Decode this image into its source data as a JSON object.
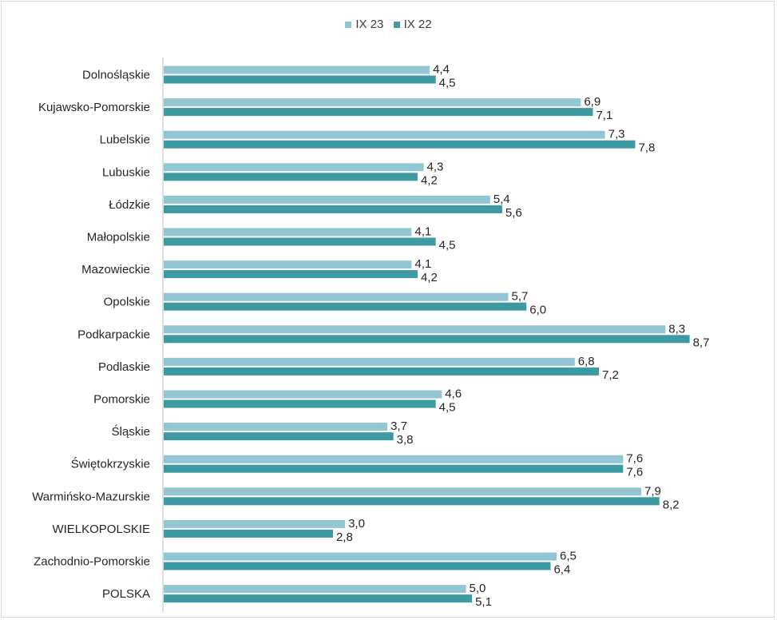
{
  "chart_data": {
    "type": "bar",
    "orientation": "horizontal",
    "legend_position": "top",
    "grid": false,
    "xlim": [
      0,
      9.5
    ],
    "categories": [
      "Dolnośląskie",
      "Kujawsko-Pomorskie",
      "Lubelskie",
      "Lubuskie",
      "Łódzkie",
      "Małopolskie",
      "Mazowieckie",
      "Opolskie",
      "Podkarpackie",
      "Podlaskie",
      "Pomorskie",
      "Śląskie",
      "Świętokrzyskie",
      "Warmińsko-Mazurskie",
      "WIELKOPOLSKIE",
      "Zachodnio-Pomorskie",
      "POLSKA"
    ],
    "series": [
      {
        "name": "IX 23",
        "color": "#93c6d3",
        "values": [
          4.4,
          6.9,
          7.3,
          4.3,
          5.4,
          4.1,
          4.1,
          5.7,
          8.3,
          6.8,
          4.6,
          3.7,
          7.6,
          7.9,
          3.0,
          6.5,
          5.0
        ],
        "labels": [
          "4,4",
          "6,9",
          "7,3",
          "4,3",
          "5,4",
          "4,1",
          "4,1",
          "5,7",
          "8,3",
          "6,8",
          "4,6",
          "3,7",
          "7,6",
          "7,9",
          "3,0",
          "6,5",
          "5,0"
        ]
      },
      {
        "name": "IX 22",
        "color": "#3d9aa3",
        "values": [
          4.5,
          7.1,
          7.8,
          4.2,
          5.6,
          4.5,
          4.2,
          6.0,
          8.7,
          7.2,
          4.5,
          3.8,
          7.6,
          8.2,
          2.8,
          6.4,
          5.1
        ],
        "labels": [
          "4,5",
          "7,1",
          "7,8",
          "4,2",
          "5,6",
          "4,5",
          "4,2",
          "6,0",
          "8,7",
          "7,2",
          "4,5",
          "3,8",
          "7,6",
          "8,2",
          "2,8",
          "6,4",
          "5,1"
        ]
      }
    ]
  }
}
